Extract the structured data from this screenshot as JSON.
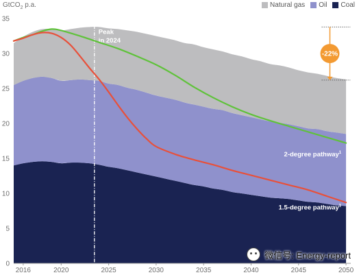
{
  "chart_data": {
    "type": "area",
    "unit_label_main": "GtCO",
    "unit_label_sub": "2",
    "unit_label_tail": " p.a.",
    "x_ticks": [
      "2016",
      "2020",
      "2025",
      "2030",
      "2035",
      "2040",
      "2045",
      "2050"
    ],
    "y_ticks": [
      "0",
      "5",
      "10",
      "15",
      "20",
      "25",
      "30",
      "35"
    ],
    "xlim": [
      2015,
      2050.5
    ],
    "ylim": [
      0,
      35.5
    ],
    "x": [
      2015,
      2016,
      2017,
      2018,
      2019,
      2020,
      2021,
      2022,
      2023,
      2024,
      2025,
      2026,
      2027,
      2028,
      2029,
      2030,
      2031,
      2032,
      2033,
      2034,
      2035,
      2036,
      2037,
      2038,
      2039,
      2040,
      2041,
      2042,
      2043,
      2044,
      2045,
      2046,
      2047,
      2048,
      2049,
      2050
    ],
    "stacked_series": [
      {
        "name": "Coal",
        "color": "#1a2352",
        "values": [
          14.0,
          14.3,
          14.5,
          14.6,
          14.5,
          14.3,
          14.4,
          14.4,
          14.3,
          14.1,
          13.8,
          13.6,
          13.3,
          13.0,
          12.7,
          12.4,
          12.1,
          11.8,
          11.5,
          11.2,
          11.0,
          10.7,
          10.5,
          10.2,
          10.0,
          9.8,
          9.6,
          9.4,
          9.3,
          9.2,
          9.0,
          8.8,
          8.7,
          8.5,
          8.3,
          8.2
        ]
      },
      {
        "name": "Oil",
        "color": "#8f91cc",
        "values": [
          11.5,
          11.8,
          12.0,
          12.1,
          12.0,
          11.8,
          11.8,
          11.9,
          11.9,
          12.0,
          11.9,
          11.9,
          11.8,
          11.8,
          11.7,
          11.6,
          11.6,
          11.6,
          11.5,
          11.5,
          11.4,
          11.4,
          11.4,
          11.3,
          11.2,
          11.1,
          11.0,
          10.9,
          10.8,
          10.7,
          10.6,
          10.5,
          10.5,
          10.4,
          10.4,
          10.3
        ]
      },
      {
        "name": "Natural gas",
        "color": "#bdbdbf",
        "values": [
          6.0,
          6.3,
          6.6,
          6.8,
          7.0,
          7.2,
          7.3,
          7.4,
          7.6,
          7.7,
          7.9,
          8.0,
          8.2,
          8.3,
          8.4,
          8.5,
          8.5,
          8.5,
          8.5,
          8.6,
          8.5,
          8.5,
          8.4,
          8.4,
          8.4,
          8.3,
          8.3,
          8.2,
          8.2,
          8.1,
          8.0,
          8.0,
          7.9,
          7.9,
          7.8,
          7.8
        ]
      }
    ],
    "lines": [
      {
        "name": "2-degree pathway",
        "sup": "1",
        "color": "#5fc23a",
        "label_year": 2049.5,
        "label_value": 15.3,
        "x": [
          2015,
          2016,
          2017,
          2018,
          2019,
          2020,
          2022,
          2024,
          2026,
          2028,
          2030,
          2032,
          2034,
          2036,
          2038,
          2040,
          2042,
          2044,
          2046,
          2048,
          2050
        ],
        "values": [
          31.8,
          32.3,
          32.7,
          33.2,
          33.5,
          33.3,
          32.5,
          31.6,
          30.7,
          29.6,
          28.4,
          26.9,
          25.2,
          23.7,
          22.4,
          21.3,
          20.4,
          19.6,
          18.8,
          18.0,
          17.2
        ]
      },
      {
        "name": "1.5-degree pathway",
        "sup": "1",
        "color": "#e8503a",
        "label_year": 2049.5,
        "label_value": 7.7,
        "x": [
          2015,
          2016,
          2017,
          2018,
          2019,
          2020,
          2021,
          2022,
          2023,
          2024,
          2025,
          2026,
          2027,
          2028,
          2029,
          2030,
          2032,
          2034,
          2036,
          2038,
          2040,
          2042,
          2044,
          2046,
          2048,
          2050
        ],
        "values": [
          31.8,
          32.2,
          32.7,
          33.0,
          32.9,
          32.3,
          31.2,
          29.6,
          27.9,
          26.3,
          24.5,
          22.6,
          20.8,
          19.2,
          17.8,
          16.7,
          15.6,
          14.8,
          14.1,
          13.3,
          12.6,
          11.9,
          11.2,
          10.5,
          9.6,
          8.7
        ]
      }
    ],
    "peak_marker": {
      "year": 2023.5,
      "label_line1": "Peak",
      "label_line2": "in 2024"
    },
    "reduction": {
      "label": "-22%",
      "year": 2048.3,
      "from_value": 33.8,
      "to_value": 26.2,
      "color": "#f39a32"
    }
  },
  "watermark": {
    "text": "微信号: Energy-report"
  }
}
